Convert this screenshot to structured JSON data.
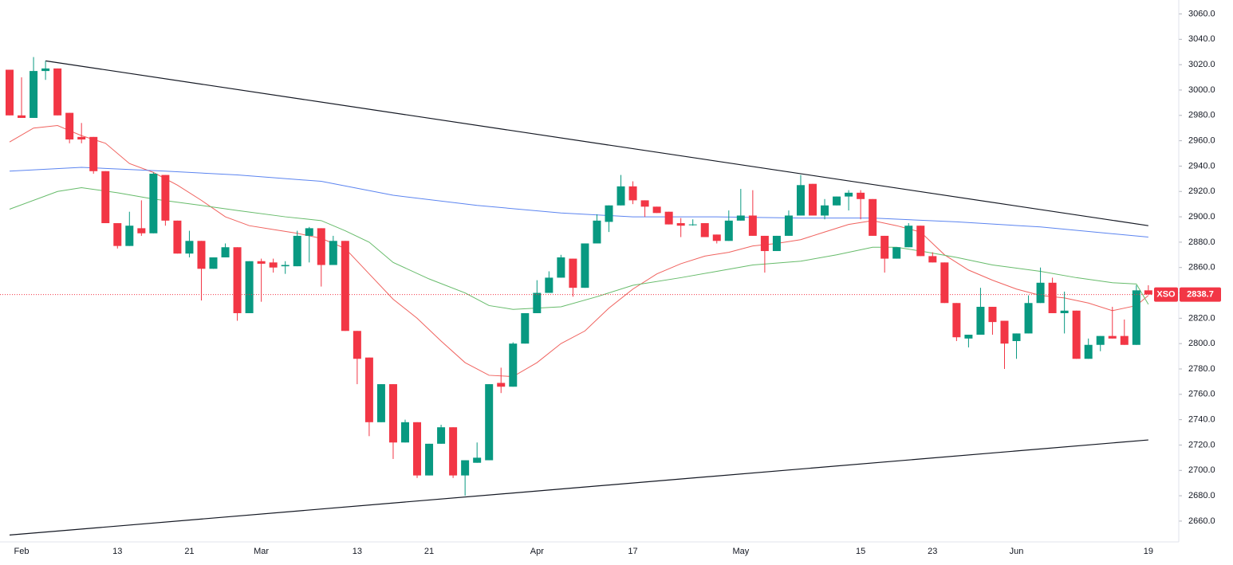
{
  "chart_data": {
    "type": "candlestick",
    "categories": [
      null,
      "Feb",
      null,
      null,
      null,
      null,
      null,
      null,
      null,
      "13",
      null,
      null,
      null,
      null,
      null,
      "21",
      null,
      null,
      null,
      null,
      null,
      "Mar",
      null,
      null,
      null,
      null,
      null,
      null,
      null,
      "13",
      null,
      null,
      null,
      null,
      null,
      "21",
      null,
      null,
      null,
      null,
      null,
      null,
      null,
      null,
      "Apr",
      null,
      null,
      null,
      null,
      null,
      null,
      null,
      "17",
      null,
      null,
      null,
      null,
      null,
      null,
      null,
      null,
      "May",
      null,
      null,
      null,
      null,
      null,
      null,
      null,
      null,
      null,
      "15",
      null,
      null,
      null,
      null,
      null,
      "23",
      null,
      null,
      null,
      null,
      null,
      null,
      "Jun",
      null,
      null,
      null,
      null,
      null,
      null,
      null,
      null,
      null,
      null,
      "19"
    ],
    "open": [
      3016,
      2980,
      2978,
      3015,
      3017,
      2982,
      2963,
      2963,
      2936,
      2895,
      2877,
      2891,
      2887,
      2933,
      2897,
      2871,
      2881,
      2859,
      2868,
      2876,
      2824,
      2865,
      2864,
      2861,
      2861,
      2885,
      2891,
      2862,
      2881,
      2810,
      2789,
      2738,
      2768,
      2722,
      2738,
      2696,
      2721,
      2734,
      2696,
      2706,
      2708,
      2769,
      2766,
      2800,
      2824,
      2840,
      2852,
      2867,
      2844,
      2879,
      2896,
      2909,
      2924,
      2913,
      2908,
      2904,
      2895,
      2894,
      2895,
      2886,
      2881,
      2897,
      2901,
      2885,
      2873,
      2885,
      2901,
      2926,
      2901,
      2909,
      2916,
      2919,
      2914,
      2885,
      2867,
      2876,
      2893,
      2869,
      2864,
      2832,
      2804,
      2807,
      2829,
      2818,
      2802,
      2808,
      2832,
      2848,
      2824,
      2826,
      2788,
      2799,
      2806,
      2806,
      2799,
      2842
    ],
    "high": [
      3016,
      3010,
      3026,
      3023,
      3017,
      2982,
      2974,
      2963,
      2936,
      2895,
      2904,
      2913,
      2935,
      2933,
      2897,
      2889,
      2881,
      2868,
      2879,
      2876,
      2865,
      2867,
      2867,
      2865,
      2889,
      2892,
      2891,
      2885,
      2881,
      2810,
      2789,
      2768,
      2768,
      2740,
      2738,
      2721,
      2736,
      2734,
      2708,
      2722,
      2768,
      2781,
      2801,
      2824,
      2850,
      2857,
      2870,
      2867,
      2879,
      2902,
      2909,
      2933,
      2928,
      2913,
      2908,
      2904,
      2899,
      2898,
      2895,
      2886,
      2905,
      2922,
      2921,
      2885,
      2885,
      2905,
      2933,
      2926,
      2914,
      2916,
      2921,
      2921,
      2914,
      2885,
      2876,
      2895,
      2893,
      2872,
      2864,
      2832,
      2807,
      2844,
      2829,
      2818,
      2808,
      2838,
      2860,
      2852,
      2841,
      2826,
      2804,
      2806,
      2829,
      2819,
      2846,
      2846
    ],
    "low": [
      2980,
      2978,
      2978,
      3008,
      2980,
      2958,
      2958,
      2934,
      2895,
      2875,
      2877,
      2885,
      2887,
      2893,
      2871,
      2868,
      2834,
      2859,
      2868,
      2818,
      2824,
      2833,
      2856,
      2855,
      2861,
      2864,
      2845,
      2862,
      2810,
      2768,
      2727,
      2738,
      2709,
      2722,
      2694,
      2696,
      2721,
      2694,
      2680,
      2706,
      2708,
      2761,
      2766,
      2800,
      2824,
      2840,
      2852,
      2837,
      2844,
      2879,
      2888,
      2909,
      2910,
      2900,
      2903,
      2894,
      2884,
      2893,
      2884,
      2879,
      2881,
      2897,
      2885,
      2856,
      2873,
      2885,
      2901,
      2901,
      2898,
      2909,
      2905,
      2898,
      2885,
      2856,
      2867,
      2876,
      2869,
      2864,
      2832,
      2802,
      2797,
      2807,
      2807,
      2780,
      2788,
      2808,
      2832,
      2824,
      2808,
      2788,
      2788,
      2794,
      2804,
      2799,
      2799,
      2838.7
    ],
    "close": [
      2980,
      2978,
      3015,
      3017,
      2980,
      2961,
      2961,
      2936,
      2895,
      2877,
      2893,
      2887,
      2934,
      2897,
      2871,
      2881,
      2859,
      2868,
      2876,
      2824,
      2865,
      2863,
      2860,
      2862,
      2885,
      2891,
      2862,
      2881,
      2810,
      2788,
      2738,
      2768,
      2722,
      2738,
      2696,
      2721,
      2734,
      2696,
      2708,
      2710,
      2768,
      2766,
      2800,
      2824,
      2840,
      2852,
      2868,
      2844,
      2879,
      2897,
      2909,
      2924,
      2913,
      2908,
      2903,
      2894,
      2893,
      2894,
      2884,
      2881,
      2897,
      2901,
      2885,
      2873,
      2885,
      2901,
      2925,
      2901,
      2909,
      2916,
      2919,
      2914,
      2885,
      2867,
      2876,
      2893,
      2869,
      2864,
      2832,
      2805,
      2807,
      2829,
      2817,
      2800,
      2808,
      2832,
      2848,
      2824,
      2826,
      2788,
      2799,
      2806,
      2804,
      2799,
      2842,
      2838.7
    ],
    "up_color": "#089981",
    "down_color": "#f23645",
    "moving_averages": [
      {
        "color": "#f0625e",
        "x": [
          0,
          2,
          4,
          6,
          8,
          10,
          12,
          14,
          16,
          18,
          20,
          22,
          24,
          26,
          28,
          30,
          32,
          34,
          36,
          38,
          40,
          42,
          44,
          46,
          48,
          50,
          52,
          54,
          56,
          58,
          60,
          62,
          64,
          66,
          68,
          70,
          72,
          74,
          76,
          78,
          80,
          82,
          84,
          86,
          88,
          90,
          92,
          94,
          95
        ],
        "values": [
          2959,
          2970,
          2972,
          2964,
          2958,
          2942,
          2935,
          2925,
          2913,
          2900,
          2893,
          2890,
          2887,
          2883,
          2875,
          2855,
          2835,
          2820,
          2802,
          2785,
          2775,
          2774,
          2785,
          2800,
          2810,
          2828,
          2843,
          2855,
          2863,
          2869,
          2872,
          2877,
          2879,
          2882,
          2888,
          2894,
          2897,
          2893,
          2888,
          2870,
          2858,
          2850,
          2843,
          2838,
          2836,
          2832,
          2826,
          2830,
          2838
        ]
      },
      {
        "color": "#66bb6a",
        "x": [
          0,
          4,
          6,
          9,
          12,
          16,
          19,
          23,
          26,
          28,
          30,
          32,
          35,
          38,
          40,
          42,
          46,
          49,
          52,
          56,
          59,
          62,
          66,
          69,
          72,
          74,
          76,
          79,
          82,
          86,
          89,
          92,
          94,
          95
        ],
        "values": [
          2906,
          2920,
          2923,
          2919,
          2914,
          2909,
          2905,
          2900,
          2897,
          2889,
          2880,
          2864,
          2851,
          2840,
          2830,
          2827,
          2829,
          2837,
          2846,
          2852,
          2857,
          2862,
          2865,
          2870,
          2876,
          2876,
          2873,
          2868,
          2862,
          2857,
          2852,
          2848,
          2847,
          2831
        ]
      },
      {
        "color": "#5b84f0",
        "x": [
          0,
          6,
          13,
          19,
          26,
          32,
          39,
          46,
          52,
          59,
          66,
          72,
          79,
          86,
          95
        ],
        "values": [
          2936,
          2939,
          2936,
          2933,
          2928,
          2917,
          2909,
          2903,
          2900,
          2900,
          2899,
          2899,
          2896,
          2892,
          2884
        ]
      }
    ],
    "trendlines": [
      {
        "color": "#131722",
        "x": [
          3,
          95
        ],
        "values": [
          3023,
          2893
        ]
      },
      {
        "color": "#131722",
        "x": [
          0,
          95
        ],
        "values": [
          2649,
          2724
        ]
      }
    ],
    "last_price": {
      "label": "XSO",
      "value": 2838.7,
      "color": "#f23645"
    },
    "ylim": [
      2643.6,
      3071
    ],
    "yticks": [
      {
        "value": 2660,
        "label": "2660.0"
      },
      {
        "value": 2680,
        "label": "2680.0"
      },
      {
        "value": 2700,
        "label": "2700.0"
      },
      {
        "value": 2720,
        "label": "2720.0"
      },
      {
        "value": 2740,
        "label": "2740.0"
      },
      {
        "value": 2760,
        "label": "2760.0"
      },
      {
        "value": 2780,
        "label": "2780.0"
      },
      {
        "value": 2800,
        "label": "2800.0"
      },
      {
        "value": 2820,
        "label": "2820.0"
      },
      {
        "value": 2840,
        "label": "2840.0"
      },
      {
        "value": 2860,
        "label": "2860.0"
      },
      {
        "value": 2880,
        "label": "2880.0"
      },
      {
        "value": 2900,
        "label": "2900.0"
      },
      {
        "value": 2920,
        "label": "2920.0"
      },
      {
        "value": 2940,
        "label": "2940.0"
      },
      {
        "value": 2960,
        "label": "2960.0"
      },
      {
        "value": 2980,
        "label": "2980.0"
      },
      {
        "value": 3000,
        "label": "3000.0"
      },
      {
        "value": 3020,
        "label": "3020.0"
      },
      {
        "value": 3040,
        "label": "3040.0"
      },
      {
        "value": 3060,
        "label": "3060.0"
      }
    ]
  }
}
